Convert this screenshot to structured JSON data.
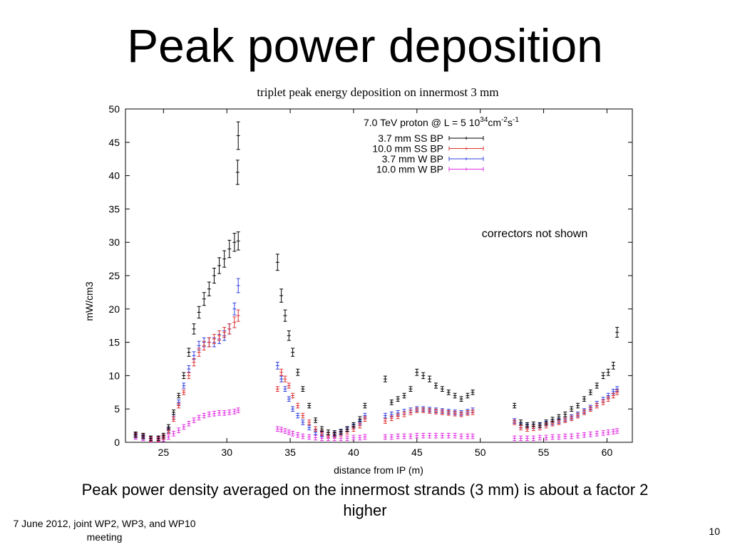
{
  "slide": {
    "title": "Peak power deposition",
    "caption_line1": "Peak power density averaged on the innermost strands (3 mm) is about a factor 2",
    "caption_line2": "higher",
    "footer_line1": "7 June 2012, joint WP2, WP3, and WP10",
    "footer_line2": "meeting",
    "page_number": "10"
  },
  "chart_data": {
    "type": "scatter",
    "title": "triplet peak energy deposition on innermost 3 mm",
    "xlabel": "distance from IP (m)",
    "ylabel": "mW/cm3",
    "xlim": [
      22,
      62
    ],
    "ylim": [
      0,
      50
    ],
    "xticks": [
      25,
      30,
      35,
      40,
      45,
      50,
      55,
      60
    ],
    "yticks": [
      0,
      5,
      10,
      15,
      20,
      25,
      30,
      35,
      40,
      45,
      50
    ],
    "grid": false,
    "legend_placement": "top-right",
    "legend_title": "7.0 TeV proton @ L = 5 10^34 cm^-2 s^-1",
    "annotation": "correctors not shown",
    "series": [
      {
        "name": "3.7 mm SS BP",
        "color": "#000000",
        "error_bars": true,
        "x": [
          22.8,
          23.4,
          24.0,
          24.6,
          25.0,
          25.4,
          25.8,
          26.2,
          26.6,
          27.0,
          27.4,
          27.8,
          28.2,
          28.6,
          29.0,
          29.4,
          29.8,
          30.2,
          30.6,
          30.9,
          30.85,
          30.9,
          34.0,
          34.3,
          34.6,
          34.9,
          35.2,
          35.6,
          36.0,
          36.5,
          37.0,
          37.5,
          38.0,
          38.5,
          39.0,
          39.5,
          40.0,
          40.5,
          40.9,
          42.5,
          43.0,
          43.5,
          44.0,
          44.5,
          45.0,
          45.5,
          46.0,
          46.5,
          47.0,
          47.5,
          48.0,
          48.5,
          49.0,
          49.4,
          52.7,
          53.2,
          53.7,
          54.2,
          54.7,
          55.2,
          55.7,
          56.2,
          56.7,
          57.2,
          57.7,
          58.2,
          58.7,
          59.2,
          59.7,
          60.1,
          60.5,
          60.8
        ],
        "y": [
          1.2,
          1.0,
          0.6,
          0.6,
          1.0,
          2.3,
          4.5,
          7.0,
          10.0,
          13.5,
          17.0,
          19.5,
          21.5,
          23.0,
          25.0,
          26.5,
          27.5,
          29.0,
          30.0,
          30.2,
          40.5,
          46.0,
          27.0,
          22.0,
          19.0,
          16.0,
          13.5,
          10.5,
          8.0,
          5.5,
          3.3,
          2.0,
          1.5,
          1.4,
          1.6,
          2.0,
          2.6,
          3.5,
          5.5,
          9.5,
          6.0,
          6.5,
          7.0,
          8.0,
          10.5,
          10.0,
          9.5,
          8.5,
          8.0,
          7.5,
          7.0,
          6.5,
          7.0,
          7.5,
          5.5,
          3.0,
          2.6,
          2.7,
          2.6,
          3.0,
          3.4,
          3.8,
          4.2,
          5.0,
          5.5,
          6.5,
          7.5,
          8.5,
          10.0,
          10.5,
          11.5,
          16.5
        ]
      },
      {
        "name": "10.0 mm SS BP",
        "color": "#e03030",
        "error_bars": true,
        "x": [
          22.8,
          23.4,
          24.0,
          24.6,
          25.0,
          25.4,
          25.8,
          26.2,
          26.6,
          27.0,
          27.4,
          27.8,
          28.2,
          28.6,
          29.0,
          29.4,
          29.8,
          30.2,
          30.6,
          30.9,
          34.0,
          34.3,
          34.6,
          34.9,
          35.2,
          35.6,
          36.0,
          36.5,
          37.0,
          37.5,
          38.0,
          38.5,
          39.0,
          39.5,
          40.0,
          40.5,
          40.9,
          42.5,
          43.0,
          43.5,
          44.0,
          44.5,
          45.0,
          45.5,
          46.0,
          46.5,
          47.0,
          47.5,
          48.0,
          48.5,
          49.0,
          49.4,
          52.7,
          53.2,
          53.7,
          54.2,
          54.7,
          55.2,
          55.7,
          56.2,
          56.7,
          57.2,
          57.7,
          58.2,
          58.7,
          59.2,
          59.7,
          60.1,
          60.5,
          60.8
        ],
        "y": [
          1.1,
          0.9,
          0.5,
          0.5,
          0.8,
          1.7,
          3.5,
          5.5,
          7.5,
          10.0,
          12.0,
          13.5,
          14.5,
          15.0,
          15.5,
          16.0,
          16.5,
          17.0,
          18.0,
          19.0,
          8.0,
          10.5,
          9.5,
          8.5,
          7.0,
          5.5,
          4.0,
          3.0,
          2.0,
          1.4,
          1.1,
          1.1,
          1.3,
          1.6,
          2.0,
          2.5,
          3.5,
          3.2,
          3.6,
          3.9,
          4.2,
          4.5,
          4.8,
          4.8,
          4.7,
          4.6,
          4.5,
          4.4,
          4.3,
          4.2,
          4.4,
          4.5,
          3.0,
          2.2,
          2.0,
          2.1,
          2.2,
          2.5,
          2.8,
          3.0,
          3.3,
          3.6,
          4.0,
          4.5,
          5.0,
          5.5,
          6.0,
          6.5,
          7.0,
          7.5
        ]
      },
      {
        "name": "3.7 mm W BP",
        "color": "#3040e0",
        "error_bars": true,
        "x": [
          22.8,
          23.4,
          24.0,
          24.6,
          25.0,
          25.4,
          25.8,
          26.2,
          26.6,
          27.0,
          27.4,
          27.8,
          28.2,
          28.6,
          29.0,
          29.4,
          29.8,
          30.2,
          30.6,
          30.9,
          34.0,
          34.3,
          34.6,
          34.9,
          35.2,
          35.6,
          36.0,
          36.5,
          37.0,
          37.5,
          38.0,
          38.5,
          39.0,
          39.5,
          40.0,
          40.5,
          40.9,
          42.5,
          43.0,
          43.5,
          44.0,
          44.5,
          45.0,
          45.5,
          46.0,
          46.5,
          47.0,
          47.5,
          48.0,
          48.5,
          49.0,
          49.4,
          52.7,
          53.2,
          53.7,
          54.2,
          54.7,
          55.2,
          55.7,
          56.2,
          56.7,
          57.2,
          57.7,
          58.2,
          58.7,
          59.2,
          59.7,
          60.1,
          60.5,
          60.8
        ],
        "y": [
          1.0,
          0.8,
          0.5,
          0.5,
          0.8,
          1.8,
          3.8,
          6.0,
          8.5,
          11.0,
          13.0,
          14.5,
          15.0,
          15.0,
          15.0,
          15.5,
          16.0,
          17.0,
          20.0,
          23.5,
          11.5,
          9.5,
          8.0,
          6.5,
          5.0,
          4.0,
          3.0,
          2.2,
          1.5,
          1.2,
          1.1,
          1.2,
          1.5,
          1.9,
          2.4,
          3.0,
          4.0,
          4.0,
          4.2,
          4.4,
          4.6,
          4.8,
          5.0,
          5.0,
          4.9,
          4.8,
          4.7,
          4.6,
          4.5,
          4.4,
          4.6,
          4.8,
          3.2,
          2.5,
          2.4,
          2.4,
          2.5,
          2.8,
          3.0,
          3.2,
          3.5,
          3.8,
          4.2,
          4.7,
          5.2,
          5.8,
          6.4,
          7.0,
          7.6,
          8.0
        ]
      },
      {
        "name": "10.0 mm W BP",
        "color": "#e030e0",
        "error_bars": true,
        "x": [
          22.8,
          23.4,
          24.0,
          24.6,
          25.0,
          25.4,
          25.8,
          26.2,
          26.6,
          27.0,
          27.4,
          27.8,
          28.2,
          28.6,
          29.0,
          29.4,
          29.8,
          30.2,
          30.6,
          30.9,
          34.0,
          34.3,
          34.6,
          34.9,
          35.2,
          35.6,
          36.0,
          36.5,
          37.0,
          37.5,
          38.0,
          38.5,
          39.0,
          39.5,
          40.0,
          40.5,
          40.9,
          42.5,
          43.0,
          43.5,
          44.0,
          44.5,
          45.0,
          45.5,
          46.0,
          46.5,
          47.0,
          47.5,
          48.0,
          48.5,
          49.0,
          49.4,
          52.7,
          53.2,
          53.7,
          54.2,
          54.7,
          55.2,
          55.7,
          56.2,
          56.7,
          57.2,
          57.7,
          58.2,
          58.7,
          59.2,
          59.7,
          60.1,
          60.5,
          60.8
        ],
        "y": [
          0.8,
          0.6,
          0.4,
          0.4,
          0.5,
          0.8,
          1.3,
          1.8,
          2.3,
          2.8,
          3.3,
          3.7,
          4.0,
          4.2,
          4.3,
          4.4,
          4.4,
          4.5,
          4.6,
          4.8,
          2.0,
          1.9,
          1.7,
          1.5,
          1.3,
          1.1,
          0.9,
          0.8,
          0.7,
          0.6,
          0.6,
          0.6,
          0.6,
          0.6,
          0.7,
          0.7,
          0.8,
          0.8,
          0.8,
          0.9,
          0.9,
          0.9,
          1.0,
          1.0,
          1.0,
          1.0,
          1.0,
          1.0,
          1.0,
          0.9,
          0.9,
          0.9,
          0.6,
          0.6,
          0.6,
          0.6,
          0.7,
          0.7,
          0.8,
          0.8,
          0.9,
          0.9,
          1.0,
          1.1,
          1.2,
          1.3,
          1.4,
          1.5,
          1.6,
          1.7
        ]
      }
    ]
  }
}
